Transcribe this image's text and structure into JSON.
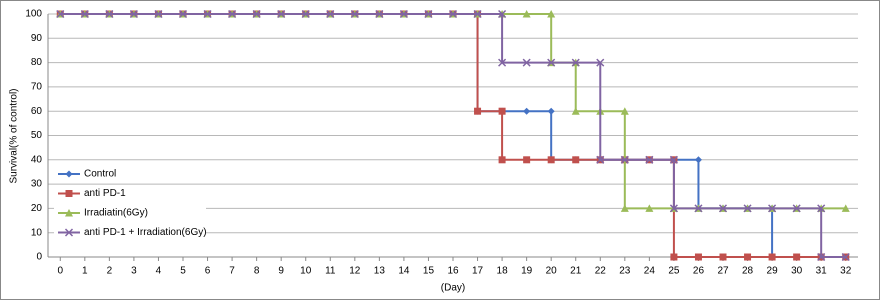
{
  "chart_data": {
    "type": "line",
    "y_label": "Survival(% of control)",
    "x_label": "(Day)",
    "xlim": [
      -0.5,
      32.5
    ],
    "xticks": [
      0,
      1,
      2,
      3,
      4,
      5,
      6,
      7,
      8,
      9,
      10,
      11,
      12,
      13,
      14,
      15,
      16,
      17,
      18,
      19,
      20,
      21,
      22,
      23,
      24,
      25,
      26,
      27,
      28,
      29,
      30,
      31,
      32
    ],
    "ylim": [
      0,
      100
    ],
    "yticks": [
      0,
      10,
      20,
      30,
      40,
      50,
      60,
      70,
      80,
      90,
      100
    ],
    "grid": true,
    "legend": "left",
    "series": [
      {
        "name": "Control",
        "color": "#4472c4",
        "marker": "diamond",
        "x": [
          0,
          1,
          2,
          3,
          4,
          5,
          6,
          7,
          8,
          9,
          10,
          11,
          12,
          13,
          14,
          15,
          16,
          17,
          17,
          18,
          19,
          20,
          20,
          21,
          22,
          23,
          24,
          25,
          26,
          26,
          27,
          28,
          29,
          29,
          30,
          31,
          32
        ],
        "values": [
          100,
          100,
          100,
          100,
          100,
          100,
          100,
          100,
          100,
          100,
          100,
          100,
          100,
          100,
          100,
          100,
          100,
          100,
          60,
          60,
          60,
          60,
          40,
          40,
          40,
          40,
          40,
          40,
          40,
          20,
          20,
          20,
          20,
          0,
          0,
          0,
          0
        ]
      },
      {
        "name": "anti PD-1",
        "color": "#c0504d",
        "marker": "square",
        "x": [
          0,
          1,
          2,
          3,
          4,
          5,
          6,
          7,
          8,
          9,
          10,
          11,
          12,
          13,
          14,
          15,
          16,
          17,
          17,
          18,
          18,
          19,
          20,
          21,
          22,
          23,
          24,
          25,
          25,
          26,
          27,
          28,
          29,
          30,
          31,
          32
        ],
        "values": [
          100,
          100,
          100,
          100,
          100,
          100,
          100,
          100,
          100,
          100,
          100,
          100,
          100,
          100,
          100,
          100,
          100,
          100,
          60,
          60,
          40,
          40,
          40,
          40,
          40,
          40,
          40,
          40,
          0,
          0,
          0,
          0,
          0,
          0,
          0,
          0
        ]
      },
      {
        "name": "Irradiatin(6Gy)",
        "color": "#9bbb59",
        "marker": "triangle",
        "x": [
          0,
          1,
          2,
          3,
          4,
          5,
          6,
          7,
          8,
          9,
          10,
          11,
          12,
          13,
          14,
          15,
          16,
          17,
          18,
          19,
          20,
          20,
          21,
          21,
          22,
          23,
          23,
          24,
          25,
          26,
          27,
          28,
          29,
          30,
          31,
          32
        ],
        "values": [
          100,
          100,
          100,
          100,
          100,
          100,
          100,
          100,
          100,
          100,
          100,
          100,
          100,
          100,
          100,
          100,
          100,
          100,
          100,
          100,
          100,
          80,
          80,
          60,
          60,
          60,
          20,
          20,
          20,
          20,
          20,
          20,
          20,
          20,
          20,
          20
        ]
      },
      {
        "name": "anti PD-1 + Irradiation(6Gy)",
        "color": "#8064a2",
        "marker": "cross",
        "x": [
          0,
          1,
          2,
          3,
          4,
          5,
          6,
          7,
          8,
          9,
          10,
          11,
          12,
          13,
          14,
          15,
          16,
          17,
          18,
          18,
          19,
          20,
          21,
          22,
          22,
          23,
          24,
          25,
          25,
          26,
          27,
          28,
          29,
          30,
          31,
          31,
          32
        ],
        "values": [
          100,
          100,
          100,
          100,
          100,
          100,
          100,
          100,
          100,
          100,
          100,
          100,
          100,
          100,
          100,
          100,
          100,
          100,
          100,
          80,
          80,
          80,
          80,
          80,
          40,
          40,
          40,
          40,
          20,
          20,
          20,
          20,
          20,
          20,
          20,
          0,
          0
        ]
      }
    ]
  }
}
